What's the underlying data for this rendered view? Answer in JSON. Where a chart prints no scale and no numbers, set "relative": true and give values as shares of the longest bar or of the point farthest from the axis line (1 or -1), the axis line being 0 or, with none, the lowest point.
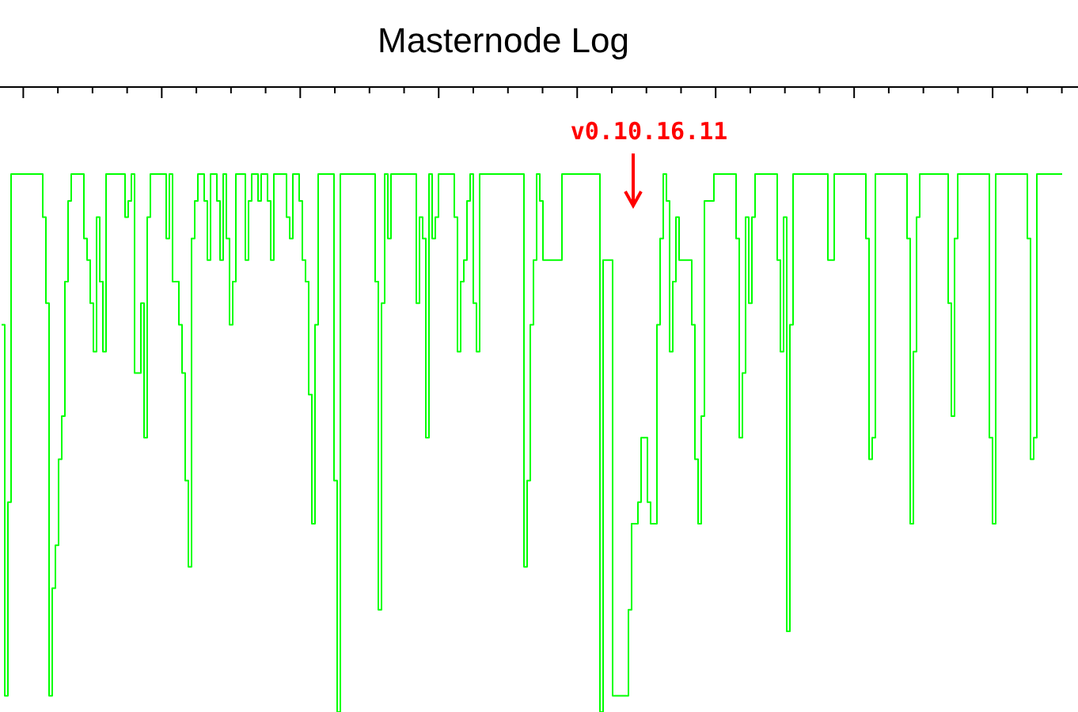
{
  "chart_data": {
    "type": "step",
    "title": "Masternode Log",
    "relative": true,
    "categories": [
      null,
      null,
      null,
      null,
      null,
      null,
      null,
      null,
      null,
      null,
      null,
      null,
      null,
      null,
      null,
      null,
      null,
      null,
      null,
      null,
      null,
      null,
      null,
      null,
      null,
      null,
      null,
      null,
      null,
      null,
      null,
      null,
      null,
      null,
      null,
      null,
      null,
      null,
      null,
      null,
      null,
      null,
      null,
      null,
      null,
      null,
      null,
      null,
      null,
      null,
      null,
      null,
      null,
      null,
      null,
      null,
      null,
      null,
      null,
      null,
      null,
      null,
      null,
      null,
      null,
      null,
      null,
      null,
      null,
      null,
      null,
      null,
      null,
      null,
      null,
      null,
      null,
      null,
      null,
      null,
      null,
      null,
      null,
      null,
      null,
      null,
      null,
      null,
      null,
      null,
      null,
      null,
      null,
      null,
      null,
      null,
      null,
      null,
      null,
      null,
      null,
      null,
      null,
      null,
      null,
      null,
      null,
      null,
      null,
      null,
      null,
      null,
      null,
      null,
      null,
      null,
      null,
      null,
      null,
      null,
      null,
      null,
      null,
      null,
      null,
      null,
      null,
      null,
      null,
      null,
      null,
      null,
      null,
      null,
      null,
      null,
      null,
      null,
      null,
      null,
      null,
      null,
      null,
      null,
      null,
      null,
      null,
      null,
      null,
      null,
      null,
      null,
      null,
      null,
      null,
      null,
      null,
      null,
      null,
      null,
      null,
      null,
      null,
      null,
      null,
      null,
      null,
      null,
      null,
      null,
      null,
      null,
      null,
      null,
      null,
      null,
      null,
      null,
      null,
      null,
      null,
      null,
      null,
      null,
      null,
      null,
      null,
      null,
      null,
      null,
      null,
      null,
      null,
      null,
      null,
      null,
      null,
      null,
      null,
      null,
      null,
      null,
      null,
      null,
      null,
      null,
      null,
      null,
      null,
      null,
      null,
      null,
      null,
      null,
      null,
      null,
      null,
      null,
      null,
      null,
      null,
      null,
      null,
      null,
      null,
      null,
      null,
      null,
      null,
      null,
      null,
      null,
      null,
      null,
      null,
      null,
      null,
      null,
      null,
      null,
      null,
      null,
      null,
      null,
      null,
      null,
      null,
      null,
      null,
      null,
      null,
      null,
      null,
      null,
      null,
      null,
      null,
      null,
      null,
      null,
      null,
      null,
      null,
      null,
      null,
      null,
      null,
      null,
      null,
      null,
      null,
      null,
      null,
      null,
      null,
      null,
      null,
      null,
      null,
      null,
      null,
      null,
      null,
      null,
      null,
      null,
      null,
      null,
      null,
      null,
      null,
      null,
      null,
      null,
      null,
      null,
      null,
      null,
      null,
      null,
      null,
      null,
      null,
      null,
      null,
      null,
      null,
      null,
      null,
      null,
      null,
      null,
      null,
      null,
      null,
      null,
      null,
      null,
      null,
      null,
      null,
      null,
      null,
      null,
      null,
      null,
      null,
      null,
      null,
      null,
      null,
      null,
      null,
      null,
      null,
      null
    ],
    "series": [
      {
        "color": "#00ff00",
        "values": [
          0.72,
          0.03,
          0.39,
          1,
          1,
          1,
          1,
          1,
          1,
          1,
          1,
          1,
          1,
          0.92,
          0.76,
          0.03,
          0.23,
          0.31,
          0.47,
          0.55,
          0.8,
          0.95,
          1,
          1,
          1,
          1,
          0.88,
          0.84,
          0.76,
          0.67,
          0.92,
          0.8,
          0.67,
          1,
          1,
          1,
          1,
          1,
          1,
          0.92,
          0.95,
          1,
          0.63,
          0.63,
          0.76,
          0.51,
          0.92,
          1,
          1,
          1,
          1,
          1,
          0.88,
          1,
          0.8,
          0.8,
          0.72,
          0.63,
          0.43,
          0.27,
          0.88,
          0.95,
          1,
          1,
          0.95,
          0.84,
          1,
          1,
          0.95,
          0.84,
          1,
          0.88,
          0.72,
          0.8,
          1,
          1,
          1,
          0.84,
          0.95,
          1,
          1,
          0.95,
          1,
          1,
          0.95,
          0.84,
          1,
          1,
          1,
          1,
          0.92,
          0.88,
          1,
          1,
          0.95,
          0.84,
          0.8,
          0.59,
          0.35,
          0.72,
          1,
          1,
          1,
          1,
          1,
          0.43,
          0,
          1,
          1,
          1,
          1,
          1,
          1,
          1,
          1,
          1,
          1,
          1,
          0.8,
          0.19,
          0.76,
          1,
          0.88,
          1,
          1,
          1,
          1,
          1,
          1,
          1,
          1,
          0.76,
          0.92,
          0.88,
          0.51,
          1,
          0.88,
          0.92,
          1,
          1,
          1,
          1,
          1,
          0.92,
          0.67,
          0.8,
          0.84,
          0.95,
          1,
          0.76,
          0.67,
          1,
          1,
          1,
          1,
          1,
          1,
          1,
          1,
          1,
          1,
          1,
          1,
          1,
          1,
          0.27,
          0.43,
          0.72,
          0.84,
          1,
          0.95,
          0.84,
          0.84,
          0.84,
          0.84,
          0.84,
          0.84,
          1,
          1,
          1,
          1,
          1,
          1,
          1,
          1,
          1,
          1,
          1,
          1,
          0,
          0.84,
          0.84,
          0.84,
          0.03,
          0.03,
          0.03,
          0.03,
          0.03,
          0.19,
          0.35,
          0.35,
          0.39,
          0.51,
          0.51,
          0.39,
          0.35,
          0.35,
          0.72,
          0.88,
          1,
          0.95,
          0.67,
          0.8,
          0.92,
          0.84,
          0.84,
          0.84,
          0.84,
          0.72,
          0.47,
          0.35,
          0.55,
          0.95,
          0.95,
          0.95,
          1,
          1,
          1,
          1,
          1,
          1,
          1,
          0.88,
          0.51,
          0.63,
          0.92,
          0.76,
          0.92,
          1,
          1,
          1,
          1,
          1,
          1,
          1,
          0.84,
          0.67,
          0.92,
          0.15,
          0.72,
          1,
          1,
          1,
          1,
          1,
          1,
          1,
          1,
          1,
          1,
          1,
          0.84,
          0.84,
          1,
          1,
          1,
          1,
          1,
          1,
          1,
          1,
          1,
          1,
          0.88,
          0.47,
          0.51,
          1,
          1,
          1,
          1,
          1,
          1,
          1,
          1,
          1,
          1,
          0.88,
          0.35,
          0.67,
          0.92,
          1,
          1,
          1,
          1,
          1,
          1,
          1,
          1,
          1,
          0.76,
          0.55,
          0.88,
          1,
          1,
          1,
          1,
          1,
          1,
          1,
          1,
          1,
          1,
          0.51,
          0.35,
          1,
          1,
          1,
          1,
          1,
          1,
          1,
          1,
          1,
          1,
          0.88,
          0.47,
          0.51,
          1,
          1,
          1,
          1,
          1,
          1,
          1,
          1,
          1
        ]
      }
    ],
    "annotations": [
      "v0.10.16.11"
    ]
  }
}
